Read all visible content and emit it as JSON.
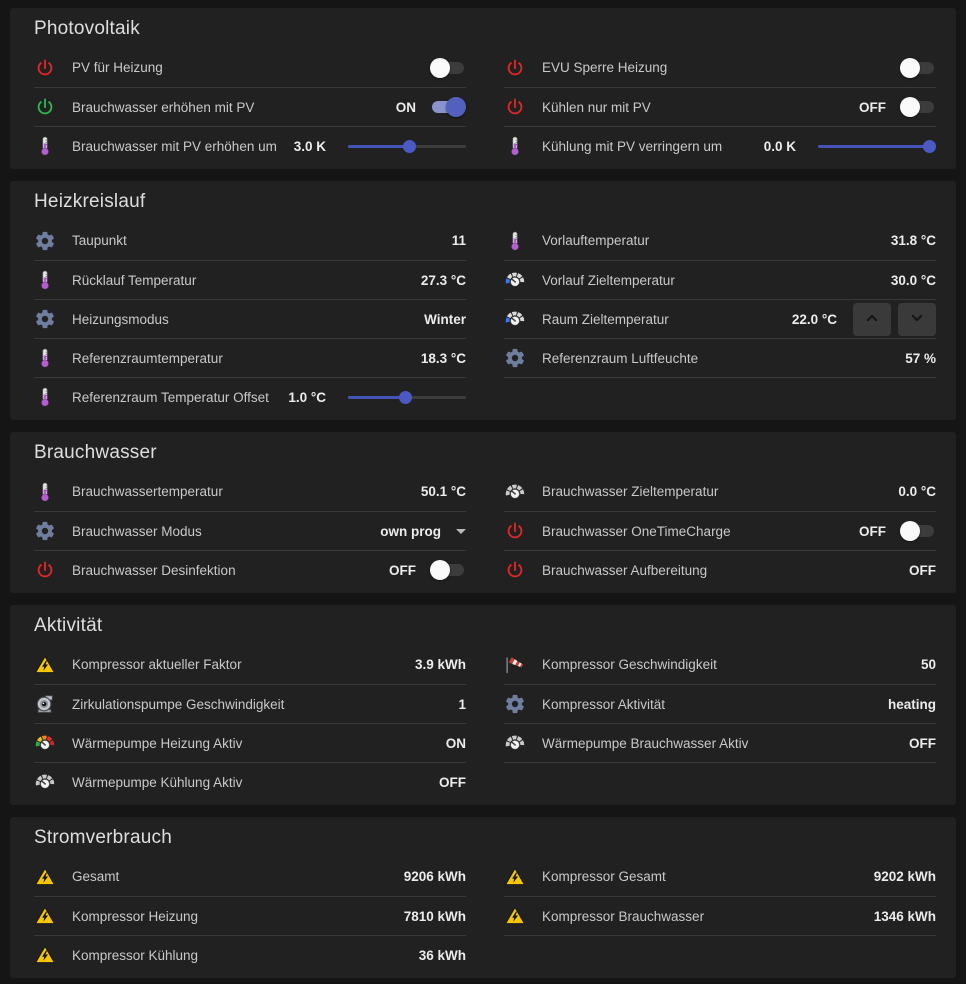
{
  "colors": {
    "page_background": "#151515",
    "card_background": "#212121",
    "divider": "#383838",
    "accent_toggle_on": "#5161bd",
    "accent_slider": "#4353b9",
    "power_red": "#e12727",
    "power_green": "#2eb850",
    "gear_blue": "#6f7e9e",
    "warning_yellow": "#f6c700",
    "thermometer_purple": "#b45fd0"
  },
  "cards": [
    {
      "title": "Photovoltaik",
      "left": [
        {
          "icon": "power-red-icon",
          "label": "PV für Heizung",
          "control": "toggle",
          "toggle_on": false
        },
        {
          "icon": "power-green-icon",
          "label": "Brauchwasser erhöhen mit PV",
          "value": "ON",
          "control": "toggle",
          "toggle_on": true
        },
        {
          "icon": "thermometer-icon",
          "label": "Brauchwasser mit PV erhöhen um",
          "value": "3.0 K",
          "control": "slider",
          "slider_percent": 52
        }
      ],
      "right": [
        {
          "icon": "power-red-icon",
          "label": "EVU Sperre Heizung",
          "control": "toggle",
          "toggle_on": false
        },
        {
          "icon": "power-red-icon",
          "label": "Kühlen nur mit PV",
          "value": "OFF",
          "control": "toggle",
          "toggle_on": false
        },
        {
          "icon": "thermometer-icon",
          "label": "Kühlung mit PV verringern um",
          "value": "0.0 K",
          "control": "slider",
          "slider_percent": 100
        }
      ]
    },
    {
      "title": "Heizkreislauf",
      "left": [
        {
          "icon": "cog-icon",
          "label": "Taupunkt",
          "value": "11"
        },
        {
          "icon": "thermometer-icon",
          "label": "Rücklauf Temperatur",
          "value": "27.3 °C"
        },
        {
          "icon": "cog-icon",
          "label": "Heizungsmodus",
          "value": "Winter"
        },
        {
          "icon": "thermometer-icon",
          "label": "Referenzraumtemperatur",
          "value": "18.3 °C"
        },
        {
          "icon": "thermometer-icon",
          "label": "Referenzraum Temperatur Offset",
          "value": "1.0 °C",
          "control": "slider",
          "slider_percent": 49
        }
      ],
      "right": [
        {
          "icon": "thermometer-icon",
          "label": "Vorlauftemperatur",
          "value": "31.8 °C"
        },
        {
          "icon": "gauge-target-icon",
          "label": "Vorlauf Zieltemperatur",
          "value": "30.0 °C"
        },
        {
          "icon": "gauge-target-icon",
          "label": "Raum Zieltemperatur",
          "value": "22.0 °C",
          "control": "stepper"
        },
        {
          "icon": "cog-icon",
          "label": "Referenzraum Luftfeuchte",
          "value": "57 %"
        }
      ]
    },
    {
      "title": "Brauchwasser",
      "left": [
        {
          "icon": "thermometer-icon",
          "label": "Brauchwassertemperatur",
          "value": "50.1 °C"
        },
        {
          "icon": "cog-icon",
          "label": "Brauchwasser Modus",
          "value": "own prog",
          "control": "dropdown"
        },
        {
          "icon": "power-red-icon",
          "label": "Brauchwasser Desinfektion",
          "value": "OFF",
          "control": "toggle",
          "toggle_on": false
        }
      ],
      "right": [
        {
          "icon": "gauge-gray-icon",
          "label": "Brauchwasser Zieltemperatur",
          "value": "0.0 °C"
        },
        {
          "icon": "power-red-icon",
          "label": "Brauchwasser OneTimeCharge",
          "value": "OFF",
          "control": "toggle",
          "toggle_on": false
        },
        {
          "icon": "power-red-icon",
          "label": "Brauchwasser Aufbereitung",
          "value": "OFF"
        }
      ]
    },
    {
      "title": "Aktivität",
      "left": [
        {
          "icon": "warning-icon",
          "label": "Kompressor aktueller Faktor",
          "value": "3.9 kWh"
        },
        {
          "icon": "pump-icon",
          "label": "Zirkulationspumpe Geschwindigkeit",
          "value": "1"
        },
        {
          "icon": "gauge-color-icon",
          "label": "Wärmepumpe Heizung Aktiv",
          "value": "ON"
        },
        {
          "icon": "gauge-gray-icon",
          "label": "Wärmepumpe Kühlung Aktiv",
          "value": "OFF"
        }
      ],
      "right": [
        {
          "icon": "windsock-icon",
          "label": "Kompressor Geschwindigkeit",
          "value": "50"
        },
        {
          "icon": "cog-icon",
          "label": "Kompressor Aktivität",
          "value": "heating"
        },
        {
          "icon": "gauge-gray-icon",
          "label": "Wärmepumpe Brauchwasser Aktiv",
          "value": "OFF"
        }
      ]
    },
    {
      "title": "Stromverbrauch",
      "left": [
        {
          "icon": "warning-icon",
          "label": "Gesamt",
          "value": "9206 kWh"
        },
        {
          "icon": "warning-icon",
          "label": "Kompressor Heizung",
          "value": "7810 kWh"
        },
        {
          "icon": "warning-icon",
          "label": "Kompressor Kühlung",
          "value": "36 kWh"
        }
      ],
      "right": [
        {
          "icon": "warning-icon",
          "label": "Kompressor Gesamt",
          "value": "9202 kWh"
        },
        {
          "icon": "warning-icon",
          "label": "Kompressor Brauchwasser",
          "value": "1346 kWh"
        }
      ]
    }
  ]
}
